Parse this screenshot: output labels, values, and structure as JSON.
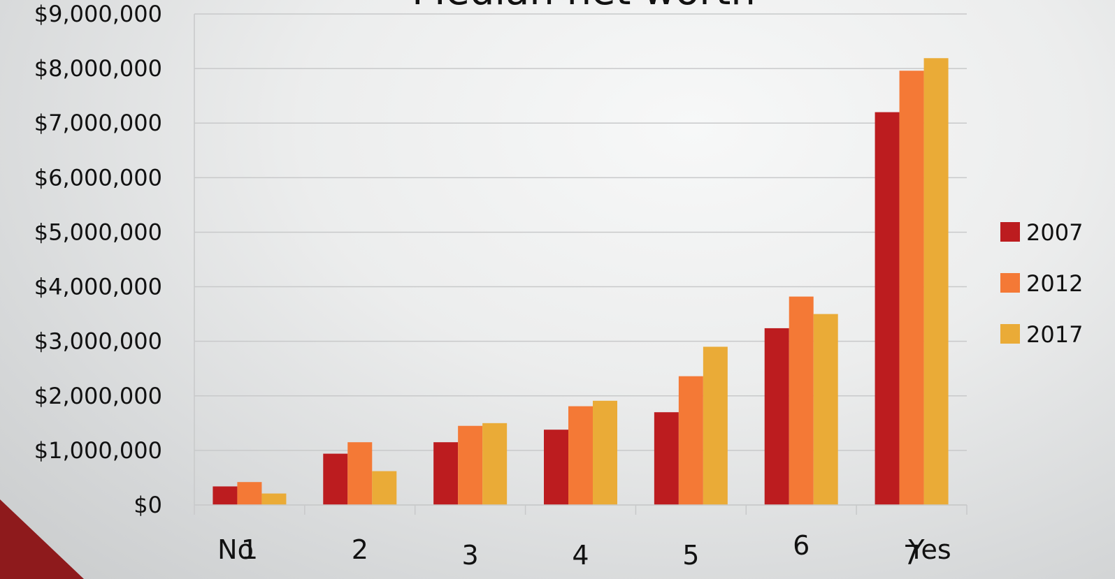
{
  "chart_data": {
    "type": "bar",
    "title": "Median net worth",
    "categories": [
      "1",
      "2",
      "3",
      "4",
      "5",
      "6",
      "7"
    ],
    "annotations": {
      "left_end": "No",
      "right_end": "Yes"
    },
    "series": [
      {
        "name": "2007",
        "color": "#bc1c1f",
        "values": [
          340000,
          940000,
          1150000,
          1380000,
          1700000,
          3240000,
          7200000
        ]
      },
      {
        "name": "2012",
        "color": "#f47936",
        "values": [
          420000,
          1150000,
          1450000,
          1810000,
          2360000,
          3820000,
          7960000
        ]
      },
      {
        "name": "2017",
        "color": "#eaab37",
        "values": [
          210000,
          620000,
          1500000,
          1910000,
          2900000,
          3500000,
          8190000
        ]
      }
    ],
    "ylim": [
      0,
      9000000
    ],
    "yticks": [
      0,
      1000000,
      2000000,
      3000000,
      4000000,
      5000000,
      6000000,
      7000000,
      8000000,
      9000000
    ],
    "ytick_labels": [
      "$0",
      "$1,000,000",
      "$2,000,000",
      "$3,000,000",
      "$4,000,000",
      "$5,000,000",
      "$6,000,000",
      "$7,000,000",
      "$8,000,000",
      "$9,000,000"
    ],
    "grid": true,
    "legend": "right"
  },
  "decor": {
    "corner_color": "#8e1a1c"
  }
}
